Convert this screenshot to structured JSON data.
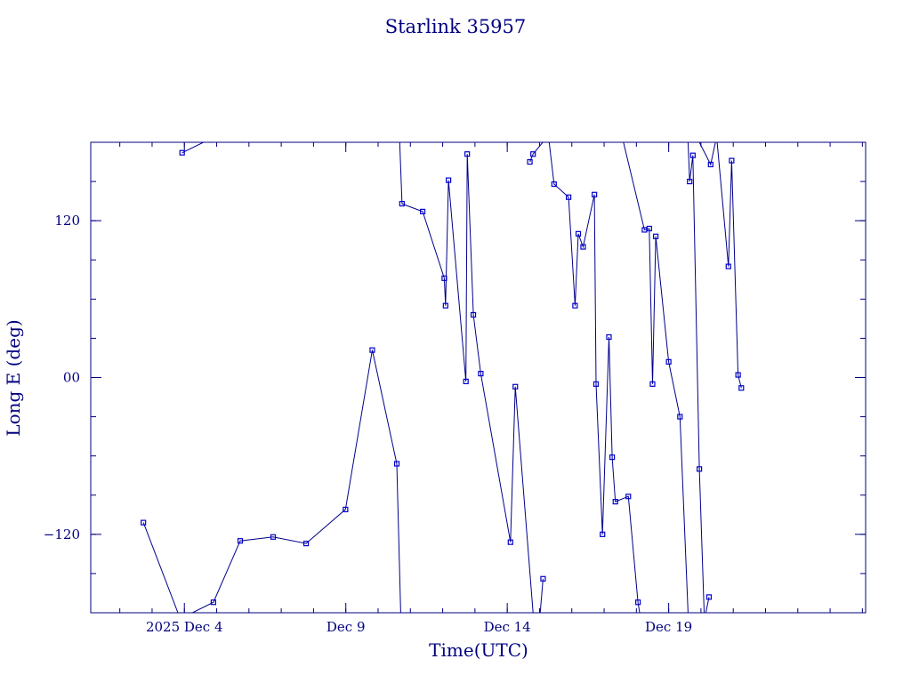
{
  "chart_data": {
    "type": "line",
    "title": "Starlink 35957",
    "xlabel": "Time(UTC)",
    "ylabel": "Long E (deg)",
    "colors": {
      "axis": "#000080",
      "series": "#00008b",
      "marker": "#0000cd"
    },
    "xlim": [
      -2.9,
      21.1
    ],
    "ylim": [
      -180,
      180
    ],
    "x_ticks": [
      {
        "value": 0,
        "label": "2025 Dec  4"
      },
      {
        "value": 5,
        "label": "Dec  9"
      },
      {
        "value": 10,
        "label": "Dec 14"
      },
      {
        "value": 15,
        "label": "Dec 19"
      }
    ],
    "y_ticks": [
      {
        "value": 120,
        "label": "120"
      },
      {
        "value": 0,
        "label": "00"
      },
      {
        "value": -120,
        "label": "−120"
      }
    ],
    "x_minor_step": 1,
    "y_minor_step": 30,
    "x_unit": "days since 2025 Dec 4 00:00 UTC",
    "series": [
      {
        "points": [
          [
            -0.07,
            172
          ],
          [
            0.59,
            180
          ],
          null,
          [
            -1.27,
            -111
          ],
          [
            -0.2,
            -180
          ],
          null,
          [
            0.25,
            -180
          ],
          [
            0.9,
            -172
          ],
          [
            1.73,
            -125
          ],
          [
            2.75,
            -122
          ],
          [
            3.77,
            -127
          ],
          [
            4.99,
            -101
          ],
          [
            5.82,
            21
          ],
          [
            6.58,
            -66
          ],
          [
            6.7,
            -180
          ],
          null,
          [
            6.67,
            180
          ],
          [
            6.74,
            133
          ],
          [
            7.38,
            127
          ],
          [
            8.05,
            76
          ],
          [
            8.09,
            55
          ],
          [
            8.18,
            151
          ],
          [
            8.72,
            -3
          ],
          [
            8.76,
            171
          ],
          [
            8.95,
            48
          ],
          [
            9.18,
            3
          ],
          [
            10.1,
            -126
          ],
          [
            10.25,
            -7
          ],
          [
            10.8,
            -180
          ],
          null,
          [
            11.11,
            -154
          ],
          [
            11.02,
            -180
          ],
          null,
          [
            10.7,
            165
          ],
          [
            10.8,
            171
          ],
          [
            11.1,
            180
          ],
          null,
          [
            11.3,
            180
          ],
          [
            11.45,
            148
          ],
          [
            11.9,
            138
          ],
          [
            12.1,
            55
          ],
          [
            12.2,
            110
          ],
          [
            12.35,
            100
          ],
          [
            12.7,
            140
          ],
          [
            12.75,
            -5
          ],
          [
            12.95,
            -120
          ],
          [
            13.15,
            31
          ],
          [
            13.25,
            -61
          ],
          [
            13.35,
            -95
          ],
          [
            13.75,
            -91
          ],
          [
            14.05,
            -172
          ],
          [
            14.1,
            -180
          ],
          null,
          [
            13.6,
            180
          ],
          [
            14.25,
            113
          ],
          [
            14.4,
            114
          ],
          [
            14.5,
            -5
          ],
          [
            14.6,
            108
          ],
          [
            15.0,
            12
          ],
          [
            15.35,
            -30
          ],
          [
            15.6,
            -180
          ],
          null,
          [
            15.6,
            180
          ],
          [
            15.65,
            150
          ],
          [
            15.75,
            170
          ],
          [
            15.95,
            -70
          ],
          [
            16.1,
            -180
          ],
          null,
          [
            15.95,
            180
          ],
          [
            16.3,
            163
          ],
          [
            16.45,
            180
          ],
          null,
          [
            16.5,
            180
          ],
          [
            16.85,
            85
          ],
          [
            16.95,
            166
          ],
          [
            17.15,
            2
          ],
          [
            17.25,
            -8
          ],
          null,
          [
            16.25,
            -168
          ],
          [
            16.15,
            -180
          ]
        ]
      }
    ]
  }
}
